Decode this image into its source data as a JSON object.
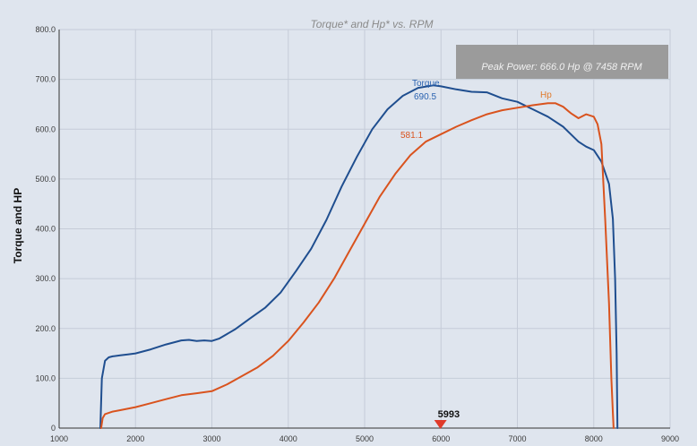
{
  "chart_data": {
    "type": "line",
    "title": "Torque* and Hp* vs. RPM",
    "ylabel": "Torque and HP",
    "xlabel": "",
    "xlim": [
      1000,
      9000
    ],
    "ylim": [
      0,
      800
    ],
    "x_ticks": [
      "1000",
      "2000",
      "3000",
      "4000",
      "5000",
      "6000",
      "7000",
      "8000",
      "9000"
    ],
    "y_ticks": [
      "0",
      "100.0",
      "200.0",
      "300.0",
      "400.0",
      "500.0",
      "600.0",
      "700.0",
      "800.0"
    ],
    "grid": true,
    "annotations": {
      "peak_power": "Peak Power: 666.0 Hp @ 7458 RPM",
      "marker_rpm": "5993",
      "marker_x": 5993,
      "torque_value": "690.5",
      "hp_value": "581.1"
    },
    "series": [
      {
        "name": "Torque",
        "color": "#1f4e8f",
        "x": [
          1540,
          1560,
          1600,
          1650,
          1700,
          1800,
          1900,
          2000,
          2200,
          2400,
          2600,
          2700,
          2800,
          2900,
          3000,
          3100,
          3300,
          3500,
          3700,
          3900,
          4100,
          4300,
          4500,
          4700,
          4900,
          5100,
          5300,
          5500,
          5700,
          5900,
          6000,
          6200,
          6400,
          6600,
          6800,
          7000,
          7200,
          7400,
          7600,
          7800,
          7900,
          8000,
          8100,
          8200,
          8250,
          8280,
          8300,
          8310
        ],
        "values": [
          0,
          100,
          135,
          142,
          144,
          146,
          148,
          150,
          158,
          168,
          176,
          177,
          175,
          176,
          175,
          180,
          198,
          220,
          242,
          272,
          315,
          360,
          418,
          485,
          545,
          600,
          640,
          667,
          683,
          688,
          686,
          680,
          675,
          674,
          662,
          655,
          640,
          625,
          605,
          575,
          565,
          558,
          535,
          490,
          420,
          300,
          150,
          0
        ]
      },
      {
        "name": "Hp",
        "color": "#d9531e",
        "x": [
          1550,
          1570,
          1600,
          1700,
          1800,
          2000,
          2200,
          2400,
          2600,
          2800,
          3000,
          3200,
          3400,
          3600,
          3800,
          4000,
          4200,
          4400,
          4600,
          4800,
          5000,
          5200,
          5400,
          5600,
          5800,
          6000,
          6200,
          6400,
          6600,
          6800,
          7000,
          7200,
          7400,
          7500,
          7600,
          7700,
          7800,
          7900,
          8000,
          8050,
          8100,
          8150,
          8200,
          8230,
          8250,
          8260
        ],
        "values": [
          0,
          20,
          28,
          33,
          36,
          42,
          50,
          58,
          66,
          70,
          74,
          88,
          105,
          122,
          145,
          175,
          212,
          252,
          300,
          355,
          410,
          465,
          510,
          548,
          575,
          590,
          605,
          618,
          630,
          638,
          643,
          648,
          652,
          652,
          645,
          632,
          622,
          630,
          625,
          610,
          570,
          420,
          250,
          100,
          30,
          0
        ]
      }
    ]
  }
}
